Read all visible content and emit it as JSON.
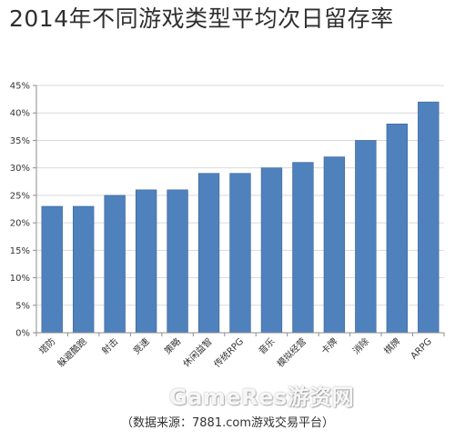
{
  "title": "2014年不同游戏类型平均次日留存率",
  "source_note": "（数据来源：7881.com游戏交易平台）",
  "watermark": "GameRes游资网",
  "colors": {
    "bar": "#4f81bd",
    "bar_border": "#3a6496",
    "grid": "#d9d9d9",
    "axis": "#8c8c8c"
  },
  "chart_data": {
    "type": "bar",
    "title": "2014年不同游戏类型平均次日留存率",
    "xlabel": "",
    "ylabel": "",
    "ylim": [
      0,
      45
    ],
    "y_ticks": [
      "0%",
      "5%",
      "10%",
      "15%",
      "20%",
      "25%",
      "30%",
      "35%",
      "40%",
      "45%"
    ],
    "grid": true,
    "legend": "none",
    "categories": [
      "塔防",
      "躲避酷跑",
      "射击",
      "竞速",
      "策略",
      "休闲益智",
      "传统RPG",
      "音乐",
      "模拟经营",
      "卡牌",
      "消除",
      "棋牌",
      "ARPG"
    ],
    "values": [
      23,
      23,
      25,
      26,
      26,
      29,
      29,
      30,
      31,
      32,
      35,
      38,
      42
    ]
  }
}
